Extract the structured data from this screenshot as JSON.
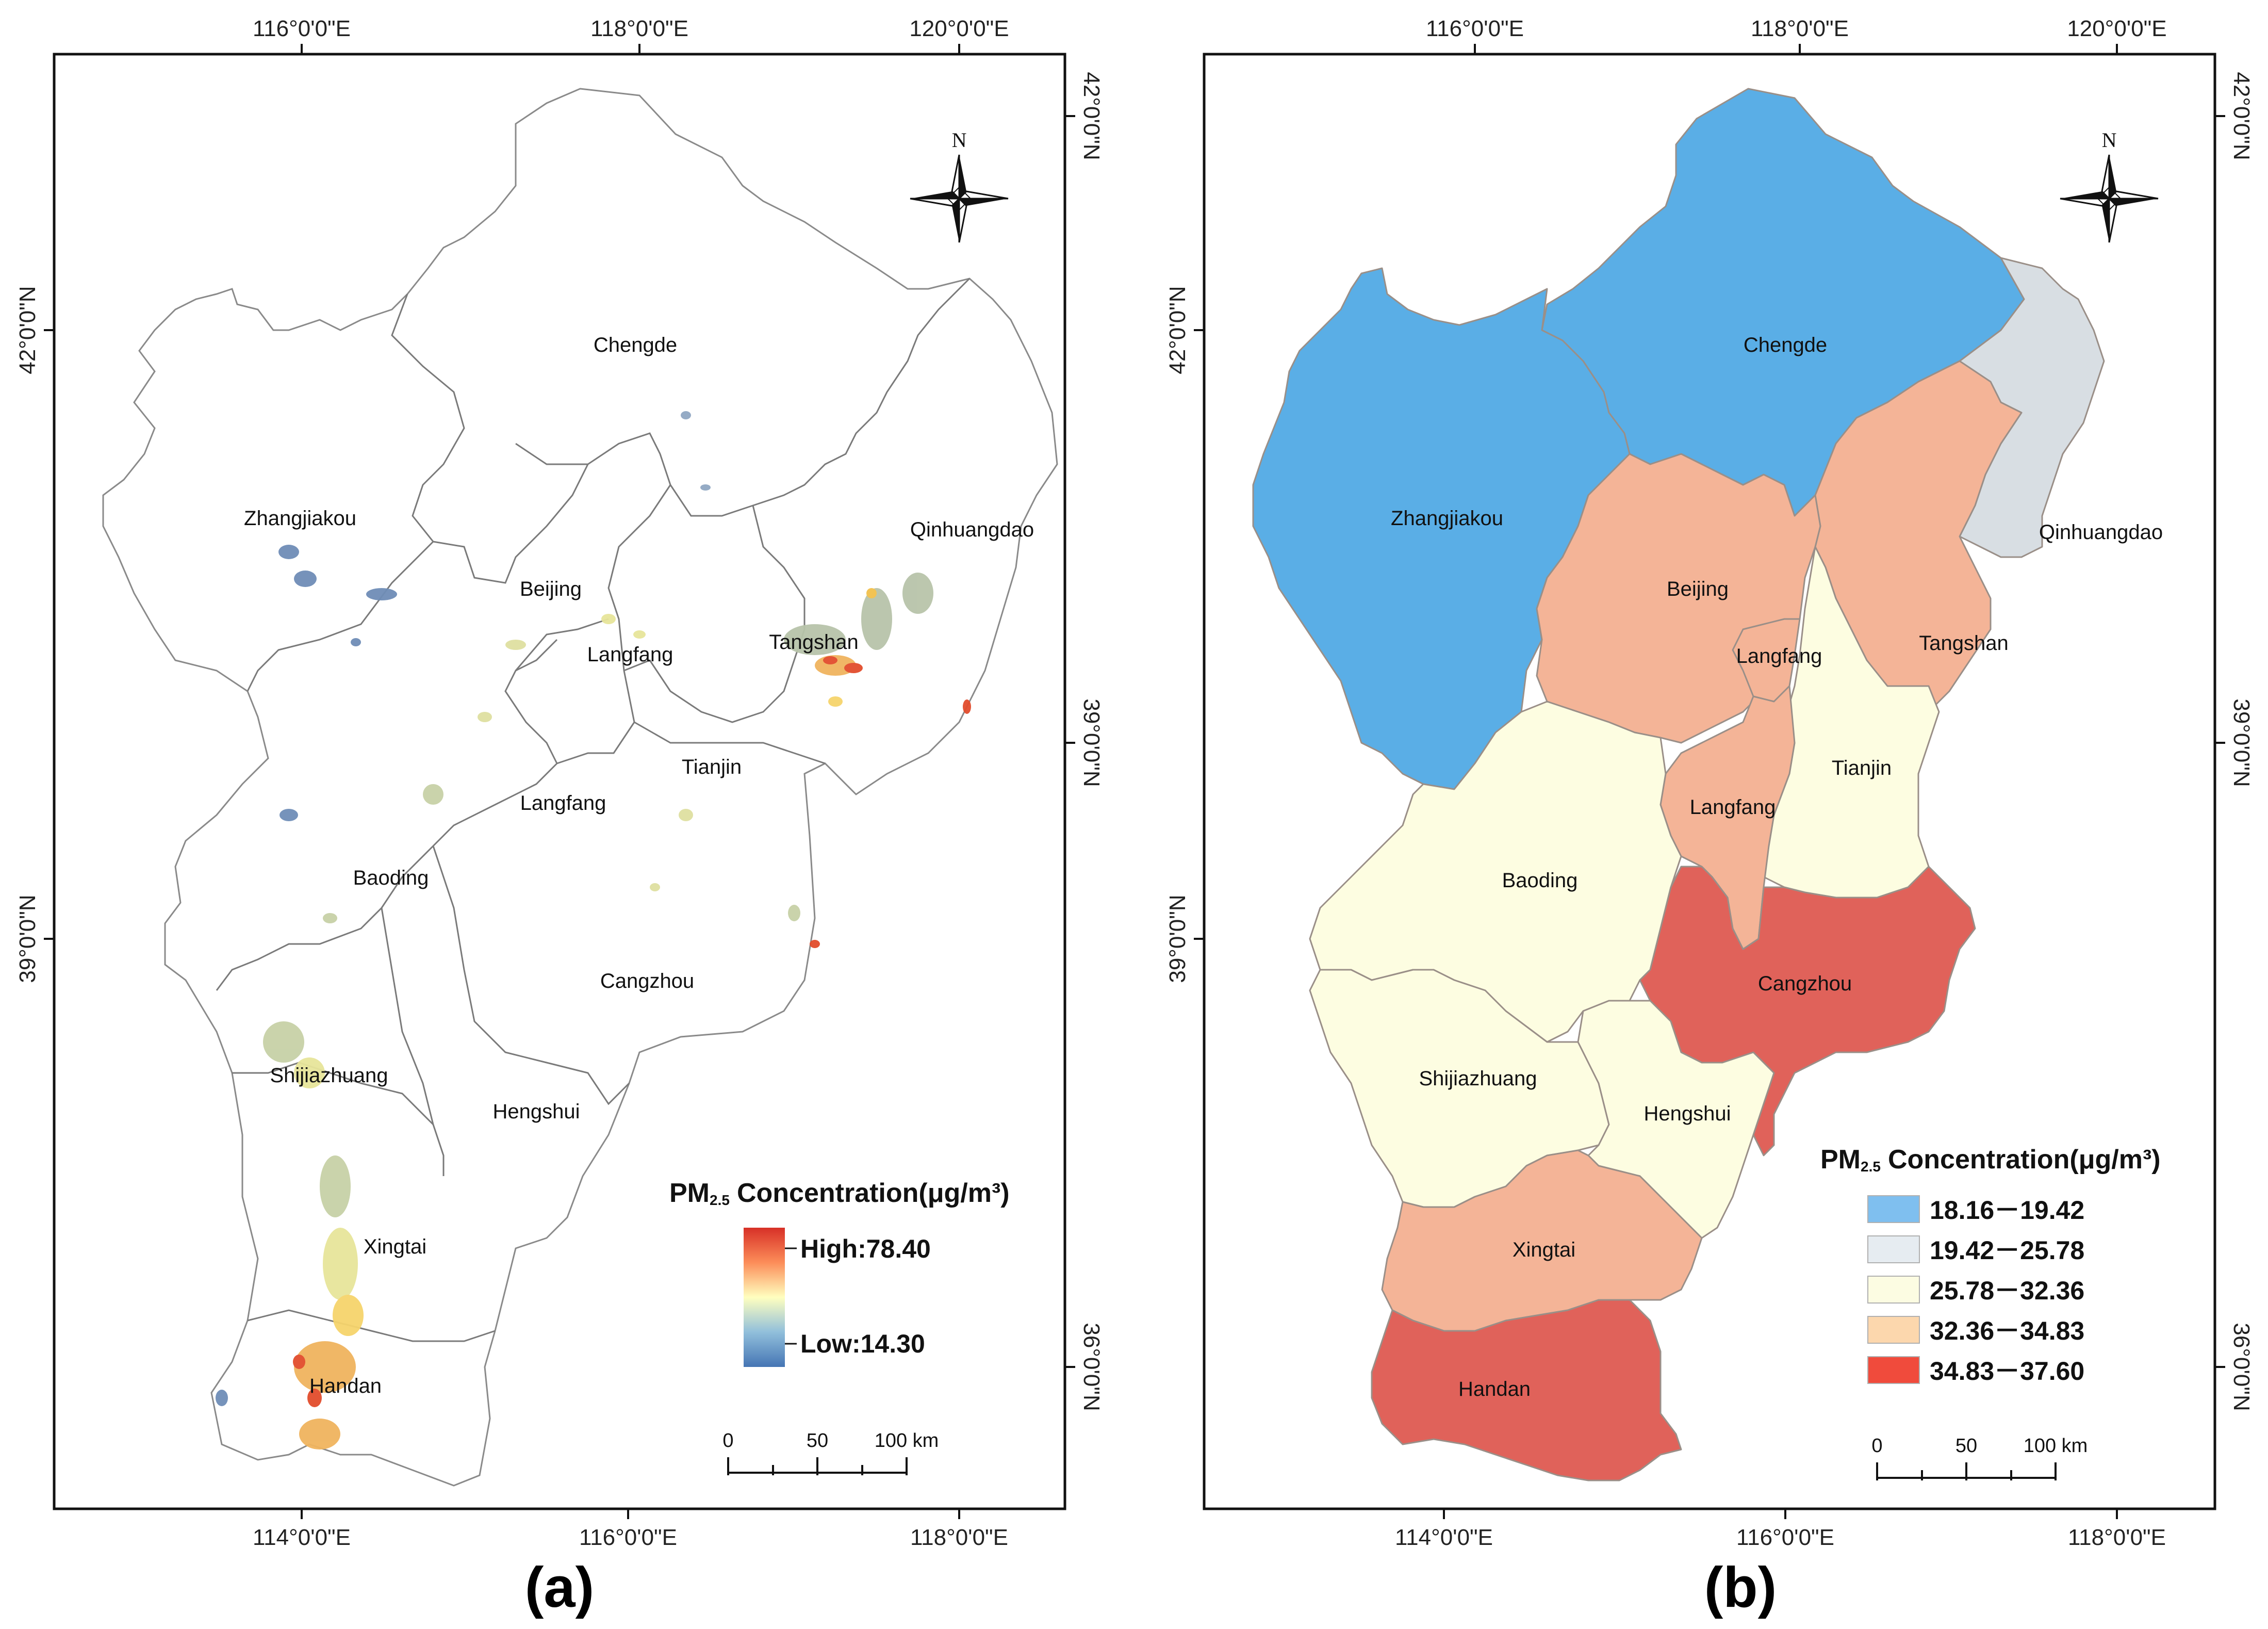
{
  "panels": [
    {
      "id": "a",
      "label": "(a)",
      "top_ticks": [
        "116°0'0\"E",
        "118°0'0\"E",
        "120°0'0\"E"
      ],
      "bottom_ticks": [
        "114°0'0\"E",
        "116°0'0\"E",
        "118°0'0\"E"
      ],
      "left_ticks": [
        "42°0'0\"N",
        "39°0'0\"N"
      ],
      "right_ticks": [
        "42°0'0\"N",
        "39°0'0\"N",
        "36°0'0\"N"
      ],
      "north": "N",
      "cities": [
        "Chengde",
        "Zhangjiakou",
        "Qinhuangdao",
        "Beijing",
        "Tangshan",
        "Langfang",
        "Tianjin",
        "Langfang",
        "Baoding",
        "Cangzhou",
        "Shijiazhuang",
        "Hengshui",
        "Xingtai",
        "Handan"
      ],
      "legend": {
        "title_main": "PM",
        "title_sub": "2.5",
        "title_rest": "Concentration(μg/m³)",
        "high_label": "High:78.40",
        "low_label": "Low:14.30",
        "high_value": 78.4,
        "low_value": 14.3
      },
      "scale": {
        "labels": [
          "0",
          "50",
          "100 km"
        ]
      }
    },
    {
      "id": "b",
      "label": "(b)",
      "top_ticks": [
        "116°0'0\"E",
        "118°0'0\"E",
        "120°0'0\"E"
      ],
      "bottom_ticks": [
        "114°0'0\"E",
        "116°0'0\"E",
        "118°0'0\"E"
      ],
      "left_ticks": [
        "42°0'0\"N",
        "39°0'0\"N"
      ],
      "right_ticks": [
        "42°0'0\"N",
        "39°0'0\"N",
        "36°0'0\"N"
      ],
      "north": "N",
      "cities": [
        "Chengde",
        "Zhangjiakou",
        "Qinhuangdao",
        "Beijing",
        "Tangshan",
        "Langfang",
        "Tianjin",
        "Langfang",
        "Baoding",
        "Cangzhou",
        "Shijiazhuang",
        "Hengshui",
        "Xingtai",
        "Handan"
      ],
      "legend": {
        "title_main": "PM",
        "title_sub": "2.5",
        "title_rest": "Concentration(μg/m³)",
        "classes": [
          {
            "label": "18.16－19.42",
            "color": "#7fbfef"
          },
          {
            "label": "19.42－25.78",
            "color": "#e6ecf1"
          },
          {
            "label": "25.78－32.36",
            "color": "#fcfce2"
          },
          {
            "label": "32.36－34.83",
            "color": "#fcd7ad"
          },
          {
            "label": "34.83－37.60",
            "color": "#f04b3c"
          }
        ]
      },
      "scale": {
        "labels": [
          "0",
          "50",
          "100 km"
        ]
      },
      "region_colors": {
        "blue": "#5aaee6",
        "grey": "#d8dee3",
        "cream": "#fdfde1",
        "salmon": "#f4b497",
        "red": "#e0625a"
      }
    }
  ]
}
